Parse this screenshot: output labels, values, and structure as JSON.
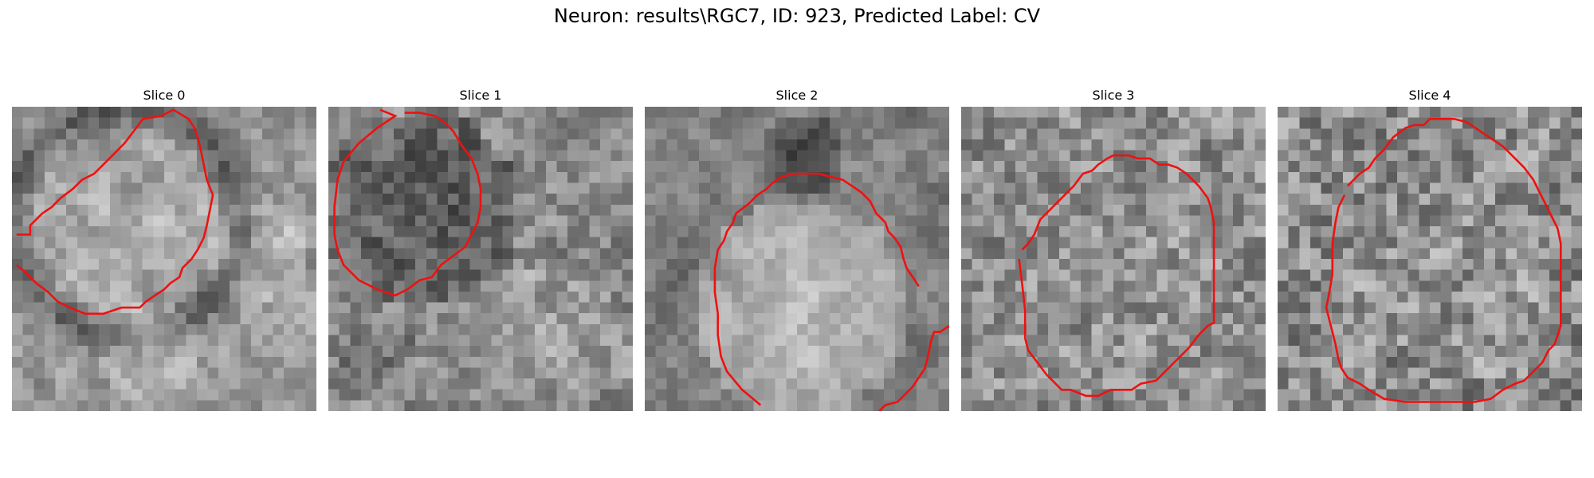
{
  "figure": {
    "title": "Neuron: results\\RGC7, ID: 923, Predicted Label: CV",
    "contour_color": "#ee1111",
    "colormap": "grayscale",
    "panels": [
      {
        "title": "Slice 0"
      },
      {
        "title": "Slice 1"
      },
      {
        "title": "Slice 2"
      },
      {
        "title": "Slice 3"
      },
      {
        "title": "Slice 4"
      }
    ]
  }
}
